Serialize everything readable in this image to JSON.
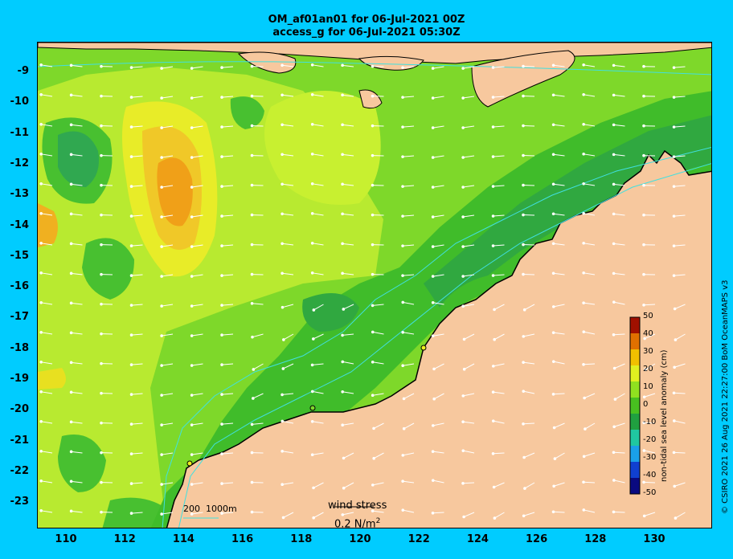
{
  "title": {
    "line1": "OM_af01an01 for 06-Jul-2021 00Z",
    "line2": "access_g for 06-Jul-2021 05:30Z"
  },
  "axes": {
    "y_ticks": [
      "-9",
      "-10",
      "-11",
      "-12",
      "-13",
      "-14",
      "-15",
      "-16",
      "-17",
      "-18",
      "-19",
      "-20",
      "-21",
      "-22",
      "-23"
    ],
    "x_ticks": [
      "110",
      "112",
      "114",
      "116",
      "118",
      "120",
      "122",
      "124",
      "126",
      "128",
      "130"
    ]
  },
  "colorbar": {
    "title": "non-tidal sea level anomaly (cm)",
    "ticks": [
      "50",
      "40",
      "30",
      "20",
      "10",
      "0",
      "-10",
      "-20",
      "-30",
      "-40",
      "-50"
    ],
    "colors": [
      "#0a0a80",
      "#1040d0",
      "#1aa0e8",
      "#20c8a0",
      "#20a040",
      "#48c020",
      "#90e020",
      "#e0f020",
      "#f0c000",
      "#e07000",
      "#a01000"
    ]
  },
  "annotations": {
    "wind_label": "wind stress",
    "wind_scale": "0.2 N/m",
    "wind_scale_sup": "2",
    "depth_contours": "200  1000m",
    "credit": "© CSIRO 2021   26 Aug 2021 22:27:00 BoM OceanMAPS v3"
  },
  "colors": {
    "background": "#00ccff",
    "land": "#f7c89e",
    "contour": "#40e0e0"
  }
}
